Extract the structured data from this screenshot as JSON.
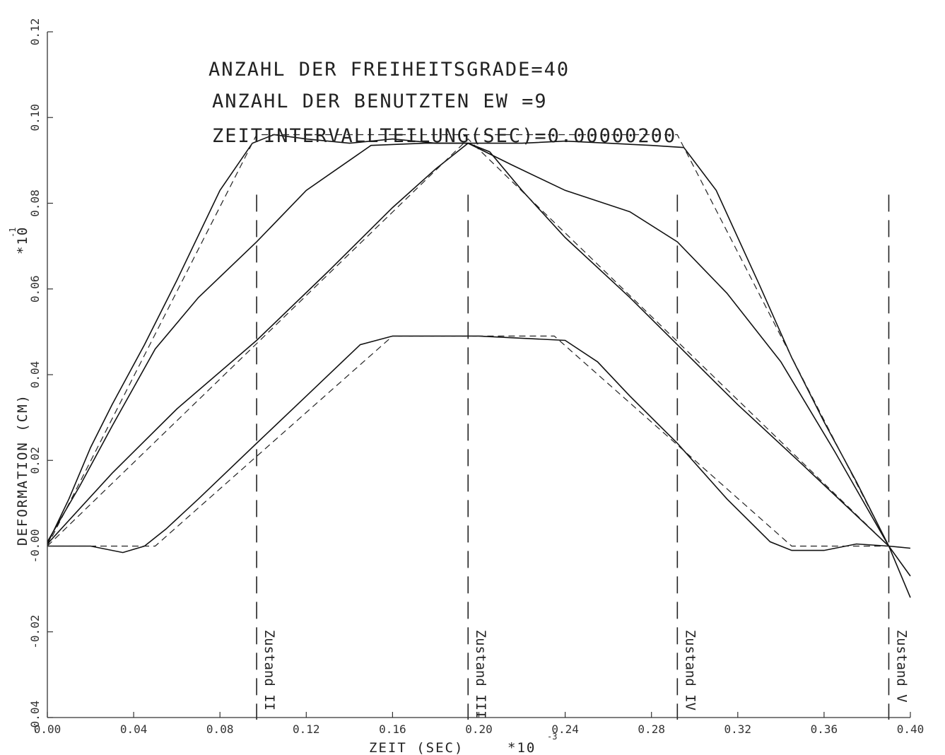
{
  "chart_data": {
    "type": "line",
    "xlabel": "ZEIT (SEC)",
    "xscale_label": "*10",
    "xscale_exp": "-3",
    "ylabel": "DEFORMATION (CM)",
    "yscale_label": "*10",
    "yscale_exp": "-1",
    "xlim": [
      0.0,
      0.4
    ],
    "ylim": [
      -0.04,
      0.12
    ],
    "x_ticks": [
      {
        "value": 0.0,
        "label": "0.00"
      },
      {
        "value": 0.04,
        "label": "0.04"
      },
      {
        "value": 0.08,
        "label": "0.08"
      },
      {
        "value": 0.12,
        "label": "0.12"
      },
      {
        "value": 0.16,
        "label": "0.16"
      },
      {
        "value": 0.2,
        "label": "0.20"
      },
      {
        "value": 0.24,
        "label": "0.24"
      },
      {
        "value": 0.28,
        "label": "0.28"
      },
      {
        "value": 0.32,
        "label": "0.32"
      },
      {
        "value": 0.36,
        "label": "0.36"
      },
      {
        "value": 0.4,
        "label": "0.40"
      }
    ],
    "y_ticks": [
      {
        "value": -0.04,
        "label": "-0.04"
      },
      {
        "value": -0.02,
        "label": "-0.02"
      },
      {
        "value": 0.0,
        "label": "-0.00"
      },
      {
        "value": 0.02,
        "label": "0.02"
      },
      {
        "value": 0.04,
        "label": "0.04"
      },
      {
        "value": 0.06,
        "label": "0.06"
      },
      {
        "value": 0.08,
        "label": "0.08"
      },
      {
        "value": 0.1,
        "label": "0.10"
      },
      {
        "value": 0.12,
        "label": "0.12"
      }
    ],
    "annotations": [
      "ANZAHL DER FREIHEITSGRADE=40",
      "ANZAHL DER BENUTZTEN EW   =9",
      "ZEITINTERVALLTEILUNG(SEC)=0.00000200"
    ],
    "markers": [
      {
        "x": 0.097,
        "label": "Zustand II"
      },
      {
        "x": 0.195,
        "label": "Zustand III"
      },
      {
        "x": 0.292,
        "label": "Zustand IV"
      },
      {
        "x": 0.39,
        "label": "Zustand V"
      }
    ],
    "series": [
      {
        "style": "solid",
        "x": [
          0.0,
          0.01,
          0.02,
          0.03,
          0.045,
          0.06,
          0.08,
          0.095,
          0.105,
          0.12,
          0.14,
          0.16,
          0.18,
          0.2,
          0.22,
          0.24,
          0.26,
          0.28,
          0.295,
          0.31,
          0.33,
          0.345,
          0.36,
          0.375,
          0.39,
          0.4
        ],
        "y": [
          0.0005,
          0.011,
          0.023,
          0.033,
          0.047,
          0.062,
          0.083,
          0.094,
          0.096,
          0.095,
          0.094,
          0.095,
          0.094,
          0.094,
          0.094,
          0.0945,
          0.094,
          0.0935,
          0.093,
          0.083,
          0.061,
          0.044,
          0.029,
          0.015,
          0.0,
          -0.007
        ]
      },
      {
        "style": "dashed",
        "x": [
          0.0,
          0.097,
          0.292,
          0.39
        ],
        "y": [
          0.0,
          0.096,
          0.096,
          0.0
        ]
      },
      {
        "style": "solid",
        "x": [
          0.0,
          0.015,
          0.03,
          0.05,
          0.07,
          0.097,
          0.12,
          0.15,
          0.175,
          0.195,
          0.215,
          0.24,
          0.27,
          0.292,
          0.315,
          0.34,
          0.365,
          0.39,
          0.4
        ],
        "y": [
          0.001,
          0.014,
          0.028,
          0.046,
          0.058,
          0.071,
          0.083,
          0.0935,
          0.094,
          0.094,
          0.089,
          0.083,
          0.078,
          0.071,
          0.059,
          0.043,
          0.022,
          0.0,
          -0.012
        ]
      },
      {
        "style": "solid",
        "x": [
          0.0,
          0.03,
          0.06,
          0.097,
          0.13,
          0.16,
          0.18,
          0.195,
          0.205,
          0.22,
          0.24,
          0.27,
          0.292,
          0.32,
          0.35,
          0.39
        ],
        "y": [
          0.0005,
          0.017,
          0.032,
          0.048,
          0.064,
          0.079,
          0.088,
          0.094,
          0.092,
          0.083,
          0.072,
          0.058,
          0.047,
          0.033,
          0.019,
          0.0
        ]
      },
      {
        "style": "dashed",
        "x": [
          0.0,
          0.195,
          0.39
        ],
        "y": [
          0.0,
          0.095,
          0.0
        ]
      },
      {
        "style": "solid",
        "x": [
          0.0,
          0.02,
          0.035,
          0.045,
          0.055,
          0.07,
          0.097,
          0.12,
          0.145,
          0.16,
          0.2,
          0.24,
          0.255,
          0.27,
          0.292,
          0.315,
          0.335,
          0.345,
          0.36,
          0.375,
          0.39,
          0.4
        ],
        "y": [
          0.0,
          0.0,
          -0.0015,
          0.0,
          0.004,
          0.011,
          0.024,
          0.035,
          0.047,
          0.049,
          0.049,
          0.048,
          0.043,
          0.035,
          0.024,
          0.011,
          0.001,
          -0.001,
          -0.001,
          0.0005,
          0.0,
          -0.0005
        ]
      },
      {
        "style": "dashed",
        "x": [
          0.0,
          0.04,
          0.05,
          0.16,
          0.235,
          0.345,
          0.39
        ],
        "y": [
          0.0,
          0.0,
          0.0,
          0.049,
          0.049,
          0.0,
          0.0
        ]
      }
    ]
  }
}
